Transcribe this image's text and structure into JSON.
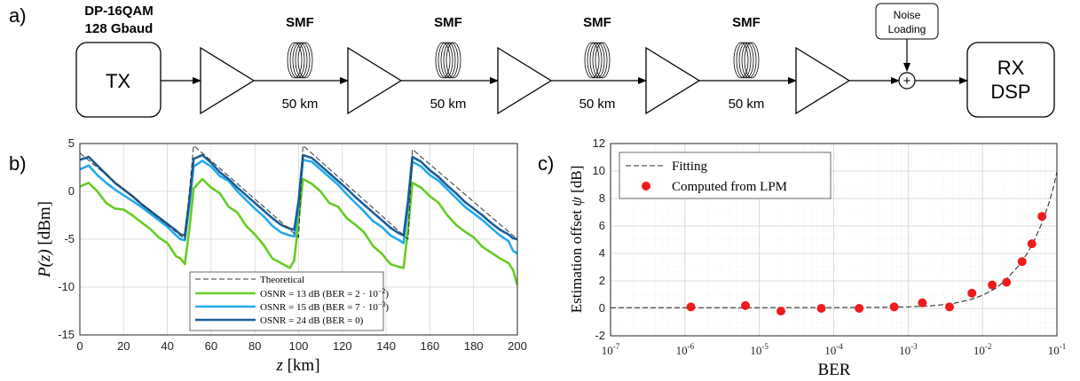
{
  "panel_a": {
    "label": "a)",
    "format_line1": "DP-16QAM",
    "format_line2": "128 Gbaud",
    "tx": "TX",
    "rx_line1": "RX",
    "rx_line2": "DSP",
    "fiber_label": "SMF",
    "span_label": "50 km",
    "noise_line1": "Noise",
    "noise_line2": "Loading",
    "plus": "+"
  },
  "chart_data": [
    {
      "id": "b",
      "panel_label": "b)",
      "type": "line",
      "xlabel_var": "z",
      "xlabel_unit": "[km]",
      "ylabel_var": "P(z)",
      "ylabel_unit": "[dBm]",
      "xlim": [
        0,
        200
      ],
      "ylim": [
        -15,
        5
      ],
      "xticks": [
        0,
        20,
        40,
        60,
        80,
        100,
        120,
        140,
        160,
        180,
        200
      ],
      "yticks": [
        -15,
        -10,
        -5,
        0,
        5
      ],
      "legend": {
        "position": "bottom-center",
        "theoretical": "Theoretical",
        "entries": [
          {
            "osnr": "OSNR = 13 dB",
            "ber_prefix": "(BER = 2 · 10",
            "ber_exp": "−2",
            "ber_suffix": ")"
          },
          {
            "osnr": "OSNR = 15 dB",
            "ber_prefix": "(BER = 7 · 10",
            "ber_exp": "−3",
            "ber_suffix": ")"
          },
          {
            "osnr": "OSNR = 24 dB",
            "ber_prefix": "(BER = 0)",
            "ber_exp": "",
            "ber_suffix": ""
          }
        ]
      },
      "series": [
        {
          "name": "Theoretical",
          "color": "#333333",
          "style": "dashed",
          "x": [
            0,
            48,
            48,
            52,
            100,
            100,
            102,
            150,
            150,
            152,
            200
          ],
          "y": [
            4.0,
            -5.0,
            -5.0,
            4.8,
            -4.8,
            -4.8,
            4.8,
            -5.0,
            -5.0,
            4.4,
            -5.0
          ]
        },
        {
          "name": "OSNR = 13 dB (BER = 2 · 10−2)",
          "color": "#66cc22",
          "x": [
            0,
            4,
            8,
            12,
            16,
            20,
            24,
            28,
            32,
            36,
            40,
            44,
            46,
            48,
            50,
            52,
            56,
            60,
            64,
            68,
            72,
            76,
            80,
            84,
            88,
            92,
            96,
            98,
            100,
            102,
            106,
            110,
            114,
            118,
            122,
            126,
            130,
            134,
            138,
            142,
            146,
            148,
            150,
            152,
            156,
            160,
            164,
            168,
            172,
            176,
            180,
            184,
            188,
            192,
            196,
            198,
            200
          ],
          "y": [
            0.5,
            0.9,
            0.0,
            -1.2,
            -1.8,
            -1.9,
            -2.5,
            -3.2,
            -3.9,
            -4.8,
            -5.4,
            -6.8,
            -7.0,
            -7.6,
            -4.0,
            0.3,
            1.3,
            0.4,
            -0.2,
            -1.6,
            -2.2,
            -3.6,
            -4.5,
            -5.6,
            -7.0,
            -7.5,
            -8.0,
            -7.2,
            -3.0,
            1.3,
            0.8,
            0.0,
            -1.2,
            -1.6,
            -2.8,
            -3.5,
            -4.3,
            -5.7,
            -6.5,
            -7.6,
            -7.9,
            -8.0,
            -4.0,
            0.9,
            0.4,
            -0.5,
            -1.2,
            -2.5,
            -3.5,
            -4.2,
            -4.8,
            -5.8,
            -6.4,
            -7.0,
            -7.5,
            -8.2,
            -9.8
          ]
        },
        {
          "name": "OSNR = 15 dB (BER = 7 · 10−3)",
          "color": "#22aaee",
          "x": [
            0,
            4,
            8,
            12,
            16,
            20,
            24,
            28,
            32,
            36,
            40,
            44,
            46,
            48,
            50,
            52,
            56,
            60,
            64,
            68,
            72,
            76,
            80,
            84,
            88,
            92,
            96,
            98,
            100,
            102,
            106,
            110,
            114,
            118,
            122,
            126,
            130,
            134,
            138,
            142,
            146,
            148,
            150,
            152,
            156,
            160,
            164,
            168,
            172,
            176,
            180,
            184,
            188,
            192,
            196,
            198,
            200
          ],
          "y": [
            2.3,
            2.7,
            1.7,
            0.9,
            0.2,
            -0.4,
            -1.0,
            -1.6,
            -2.3,
            -3.0,
            -3.7,
            -4.6,
            -5.0,
            -5.1,
            -1.5,
            2.6,
            3.2,
            2.6,
            1.6,
            1.1,
            0.0,
            -0.9,
            -1.8,
            -2.6,
            -3.6,
            -4.3,
            -4.6,
            -4.7,
            -1.5,
            3.3,
            3.1,
            2.3,
            1.5,
            0.7,
            -0.3,
            -1.2,
            -2.1,
            -3.1,
            -3.7,
            -4.6,
            -5.1,
            -5.4,
            -1.5,
            3.1,
            2.6,
            1.7,
            1.1,
            0.2,
            -0.7,
            -1.6,
            -2.3,
            -3.0,
            -3.8,
            -4.6,
            -5.2,
            -6.2,
            -6.5
          ]
        },
        {
          "name": "OSNR = 24 dB (BER = 0)",
          "color": "#1a5e9a",
          "x": [
            0,
            4,
            8,
            12,
            16,
            20,
            24,
            28,
            32,
            36,
            40,
            44,
            46,
            48,
            50,
            52,
            56,
            60,
            64,
            68,
            72,
            76,
            80,
            84,
            88,
            92,
            96,
            98,
            100,
            102,
            106,
            110,
            114,
            118,
            122,
            126,
            130,
            134,
            138,
            142,
            146,
            148,
            150,
            152,
            156,
            160,
            164,
            168,
            172,
            176,
            180,
            184,
            188,
            192,
            196,
            198,
            200
          ],
          "y": [
            3.3,
            3.6,
            2.7,
            1.8,
            0.9,
            0.2,
            -0.5,
            -1.3,
            -2.0,
            -2.7,
            -3.4,
            -4.1,
            -4.5,
            -4.6,
            -1.0,
            3.4,
            3.8,
            3.0,
            2.0,
            1.3,
            0.4,
            -0.4,
            -1.2,
            -2.0,
            -2.8,
            -3.5,
            -3.9,
            -4.0,
            -1.0,
            3.8,
            3.5,
            2.7,
            1.9,
            1.1,
            0.3,
            -0.6,
            -1.4,
            -2.2,
            -3.0,
            -3.8,
            -4.4,
            -4.6,
            -1.0,
            3.6,
            3.1,
            2.2,
            1.5,
            0.6,
            -0.2,
            -1.1,
            -1.8,
            -2.5,
            -3.3,
            -4.0,
            -4.5,
            -4.9,
            -5.0
          ]
        }
      ]
    },
    {
      "id": "c",
      "panel_label": "c)",
      "type": "scatter",
      "xscale": "log",
      "xlabel": "BER",
      "ylabel_text": "Estimation offset",
      "ylabel_var": "ψ",
      "ylabel_unit": "[dB]",
      "xlim": [
        1e-07,
        0.1
      ],
      "ylim": [
        -2,
        12
      ],
      "xtick_exponents": [
        -7,
        -6,
        -5,
        -4,
        -3,
        -2,
        -1
      ],
      "yticks": [
        -2,
        0,
        2,
        4,
        6,
        8,
        10,
        12
      ],
      "legend": {
        "position": "top-left",
        "fitting": "Fitting",
        "computed": "Computed from LPM"
      },
      "fitting": {
        "color": "#222222",
        "style": "dashed",
        "x": [
          1e-07,
          1e-06,
          1e-05,
          0.0001,
          0.0005,
          0.001,
          0.002,
          0.004,
          0.007,
          0.01,
          0.015,
          0.02,
          0.03,
          0.04,
          0.05,
          0.06,
          0.07,
          0.08,
          0.09,
          0.1
        ],
        "y": [
          0.05,
          0.05,
          0.05,
          0.06,
          0.08,
          0.11,
          0.18,
          0.35,
          0.65,
          0.95,
          1.45,
          2.0,
          3.05,
          4.0,
          5.0,
          5.95,
          6.9,
          7.85,
          8.85,
          9.95
        ]
      },
      "points": {
        "color": "#ee1c1c",
        "x": [
          1.2e-06,
          6.5e-06,
          1.95e-05,
          6.8e-05,
          0.00022,
          0.00065,
          0.00155,
          0.0036,
          0.0072,
          0.0135,
          0.021,
          0.034,
          0.046,
          0.063
        ],
        "y": [
          0.1,
          0.2,
          -0.2,
          0.0,
          0.0,
          0.1,
          0.4,
          0.1,
          1.1,
          1.7,
          1.9,
          3.4,
          4.7,
          6.7
        ]
      }
    }
  ]
}
